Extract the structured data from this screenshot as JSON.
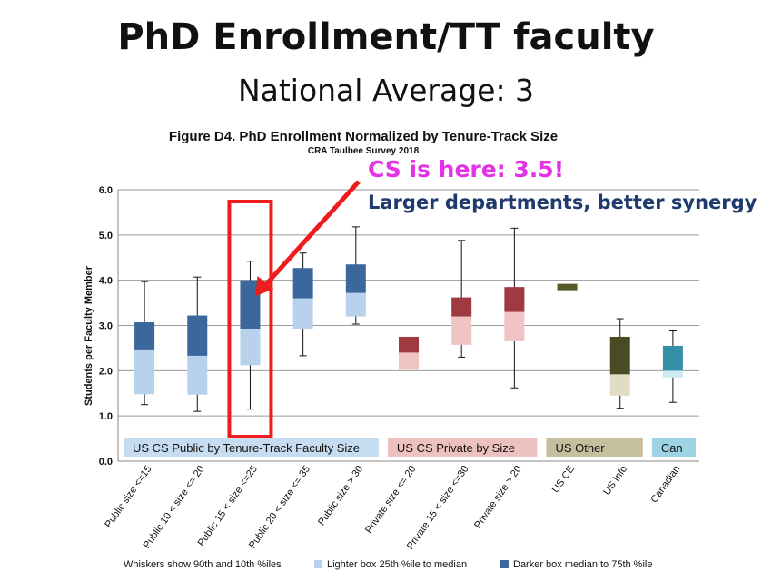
{
  "slide": {
    "title": "PhD Enrollment/TT faculty",
    "subtitle": "National Average: 3"
  },
  "annotations": {
    "cs_here": "CS is here: 3.5!",
    "larger": "Larger departments, better synergy",
    "highlight_color": "#ee1c1c",
    "cs_color": "#e632e6",
    "larger_color": "#1f3a6e"
  },
  "chart_data": {
    "type": "box",
    "title": "Figure D4. PhD Enrollment Normalized by Tenure-Track Size",
    "subtitle": "CRA Taulbee Survey 2018",
    "ylabel": "Students per Faculty Member",
    "ylim": [
      0,
      6
    ],
    "yticks": [
      "0.0",
      "1.0",
      "2.0",
      "3.0",
      "4.0",
      "5.0",
      "6.0"
    ],
    "grid": true,
    "categories": [
      "Public size <=15",
      "Public 10 < size <= 20",
      "Public 15 < size <=25",
      "Public 20 < size <= 35",
      "Public size > 30",
      "Private size <= 20",
      "Private 15 < size <=30",
      "Private size > 20",
      "US CE",
      "US Info",
      "Canadian"
    ],
    "boxes": [
      {
        "p10": 1.25,
        "p25": 1.48,
        "median": 2.47,
        "p75": 3.07,
        "p90": 3.97,
        "light": "#b8d1ec",
        "dark": "#3c679c"
      },
      {
        "p10": 1.1,
        "p25": 1.47,
        "median": 2.33,
        "p75": 3.22,
        "p90": 4.07,
        "light": "#b8d1ec",
        "dark": "#3c679c"
      },
      {
        "p10": 1.15,
        "p25": 2.12,
        "median": 2.93,
        "p75": 4.0,
        "p90": 4.42,
        "light": "#b8d1ec",
        "dark": "#3c679c"
      },
      {
        "p10": 2.33,
        "p25": 2.93,
        "median": 3.6,
        "p75": 4.27,
        "p90": 4.6,
        "light": "#b8d1ec",
        "dark": "#3c679c"
      },
      {
        "p10": 3.03,
        "p25": 3.2,
        "median": 3.72,
        "p75": 4.35,
        "p90": 5.18,
        "light": "#b8d1ec",
        "dark": "#3c679c"
      },
      {
        "p10": null,
        "p25": 2.02,
        "median": 2.4,
        "p75": 2.75,
        "p90": null,
        "light": "#f1c4c4",
        "dark": "#9e3a40"
      },
      {
        "p10": 2.3,
        "p25": 2.57,
        "median": 3.2,
        "p75": 3.62,
        "p90": 4.88,
        "light": "#f1c4c4",
        "dark": "#9e3a40"
      },
      {
        "p10": 1.62,
        "p25": 2.65,
        "median": 3.3,
        "p75": 3.85,
        "p90": 5.15,
        "light": "#f1c4c4",
        "dark": "#9e3a40"
      },
      {
        "p10": null,
        "p25": 3.78,
        "median": 3.78,
        "p75": 3.92,
        "p90": null,
        "light": "#e0dcc5",
        "dark": "#575a26"
      },
      {
        "p10": 1.17,
        "p25": 1.45,
        "median": 1.92,
        "p75": 2.75,
        "p90": 3.15,
        "light": "#e0dcc5",
        "dark": "#4a4a25"
      },
      {
        "p10": 1.3,
        "p25": 1.85,
        "median": 2.0,
        "p75": 2.55,
        "p90": 2.88,
        "light": "#cfe9f1",
        "dark": "#348ea6"
      }
    ],
    "groups": [
      {
        "label": "US CS Public by Tenure-Track Faculty Size",
        "from": 0,
        "to": 4,
        "color": "#c6dcf0"
      },
      {
        "label": "US CS Private by Size",
        "from": 5,
        "to": 7,
        "color": "#eec1c1"
      },
      {
        "label": "US Other",
        "from": 8,
        "to": 9,
        "color": "#c6bf9e"
      },
      {
        "label": "Can",
        "from": 10,
        "to": 10,
        "color": "#9dd3e3"
      }
    ],
    "highlight_category": 2,
    "legend": {
      "whiskers": "Whiskers show 90th and 10th %iles",
      "lighter": "Lighter box  25th %ile to median",
      "darker": "Darker box  median to 75th %ile",
      "lighter_color": "#b8d1ec",
      "darker_color": "#3c679c"
    }
  }
}
